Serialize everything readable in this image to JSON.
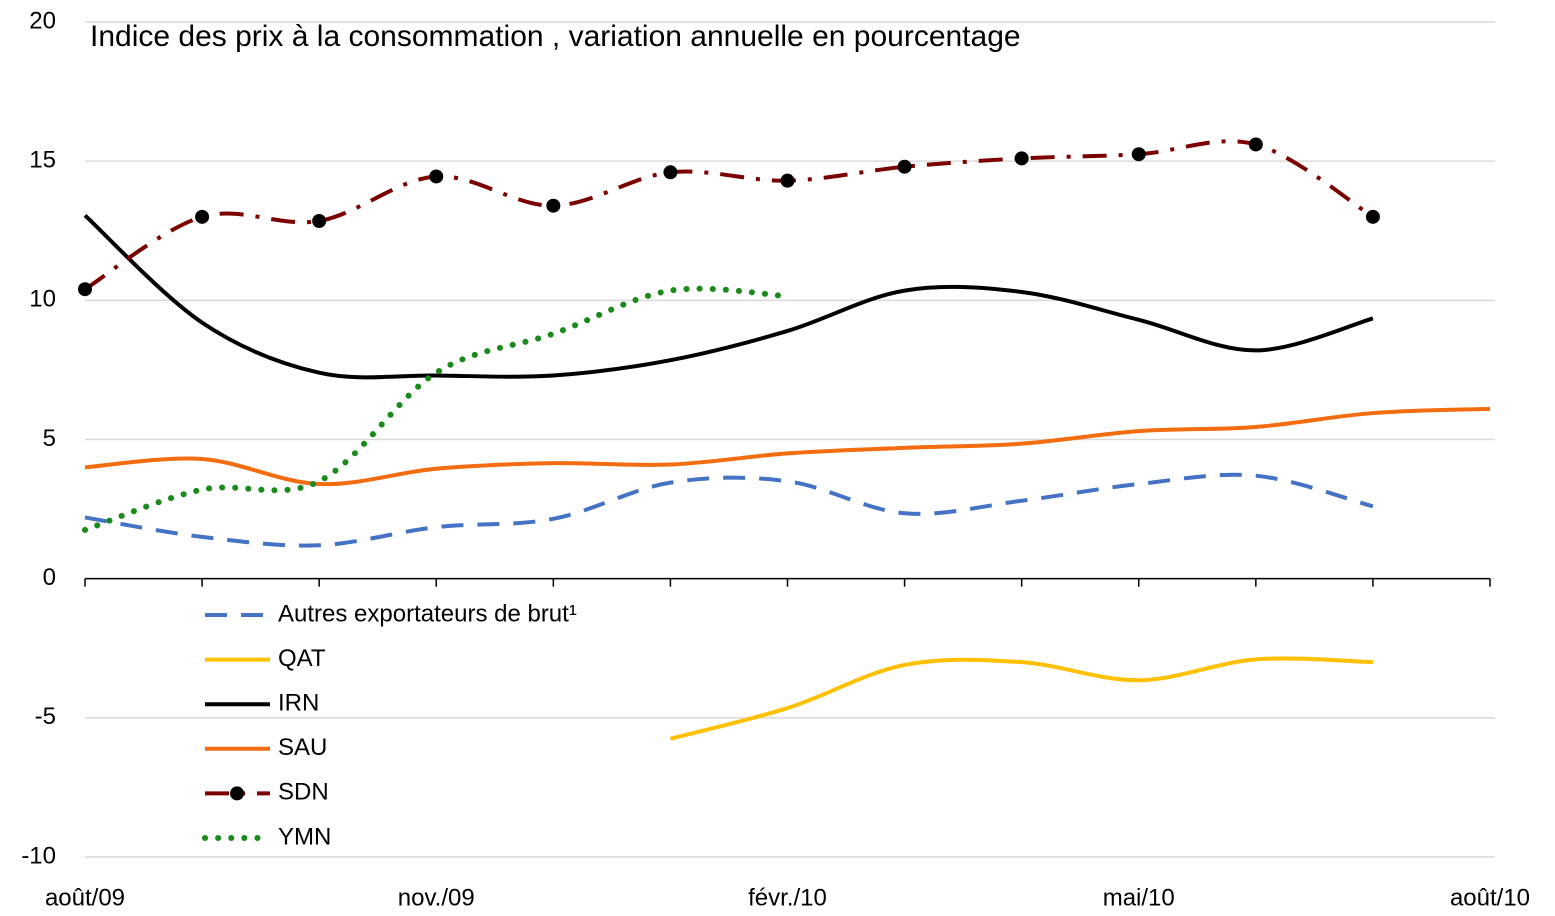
{
  "chart_data": {
    "type": "line",
    "title": "Indice des prix à la consommation , variation annuelle en pourcentage",
    "categories": [
      "août/09",
      null,
      null,
      "nov./09",
      null,
      null,
      "févr./10",
      null,
      null,
      "mai/10",
      null,
      null,
      "août/10"
    ],
    "series": [
      {
        "name": "Autres exportateurs de brut¹",
        "color": "#4472c4",
        "style": "dashed",
        "values": [
          2.2,
          1.5,
          1.2,
          1.85,
          2.15,
          3.45,
          3.5,
          2.35,
          2.8,
          3.4,
          3.7,
          2.6,
          null
        ]
      },
      {
        "name": "QAT",
        "color": "#ffc000",
        "style": "solid",
        "values": [
          null,
          null,
          null,
          null,
          null,
          -5.75,
          -4.65,
          -3.1,
          -3.0,
          -3.65,
          -2.9,
          -3.0,
          null
        ]
      },
      {
        "name": "IRN",
        "color": "#000000",
        "style": "solid",
        "values": [
          13.05,
          9.2,
          7.4,
          7.3,
          7.3,
          7.85,
          8.9,
          10.35,
          10.3,
          9.3,
          8.2,
          9.35,
          null
        ]
      },
      {
        "name": "SAU",
        "color": "#f36c0f",
        "style": "solid",
        "values": [
          4.0,
          4.3,
          3.4,
          3.95,
          4.15,
          4.1,
          4.5,
          4.7,
          4.85,
          5.3,
          5.45,
          5.95,
          6.1
        ]
      },
      {
        "name": "SDN",
        "color": "#7b0000",
        "style": "dashdot",
        "markers": true,
        "marker_color": "#000000",
        "values": [
          10.4,
          13.0,
          12.85,
          14.45,
          13.4,
          14.6,
          14.3,
          14.8,
          15.1,
          15.25,
          15.6,
          13.0,
          null
        ]
      },
      {
        "name": "YMN",
        "color": "#1a8a1a",
        "style": "dotted",
        "values": [
          1.75,
          3.2,
          3.5,
          7.4,
          8.8,
          10.35,
          10.15,
          null,
          null,
          null,
          null,
          null,
          null
        ]
      }
    ],
    "ylim": [
      -10,
      20
    ],
    "yticks": [
      -10,
      -5,
      0,
      5,
      10,
      15,
      20
    ],
    "grid": true
  }
}
